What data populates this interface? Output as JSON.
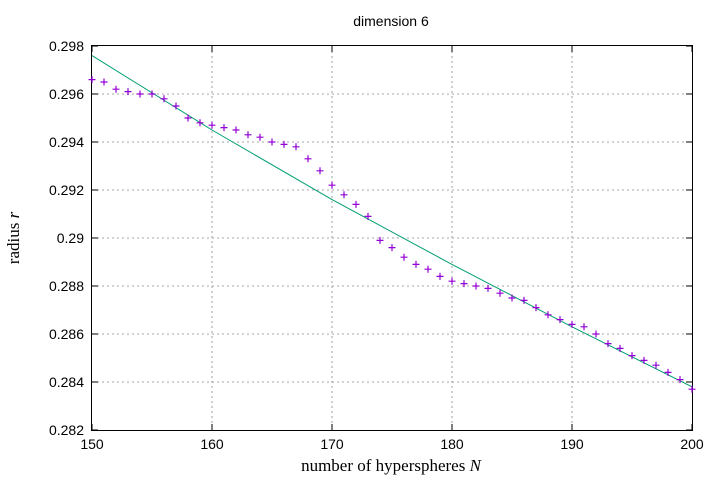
{
  "chart_data": {
    "type": "scatter",
    "title": "dimension 6",
    "xlabel": "number of hyperspheres",
    "xlabel_var": "N",
    "ylabel": "radius",
    "ylabel_var": "r",
    "xlim": [
      150,
      200
    ],
    "ylim": [
      0.282,
      0.298
    ],
    "x_ticks": [
      150,
      160,
      170,
      180,
      190,
      200
    ],
    "x_tick_labels": [
      "150",
      "160",
      "170",
      "180",
      "190",
      "200"
    ],
    "y_ticks": [
      0.282,
      0.284,
      0.286,
      0.288,
      0.29,
      0.292,
      0.294,
      0.296,
      0.298
    ],
    "y_tick_labels": [
      "0.282",
      "0.284",
      "0.286",
      "0.288",
      "0.29",
      "0.292",
      "0.294",
      "0.296",
      "0.298"
    ],
    "grid": true,
    "colors": {
      "points": "#9400d3",
      "fit": "#009e73"
    },
    "points": {
      "marker": "plus",
      "x": [
        150,
        151,
        152,
        153,
        154,
        155,
        156,
        157,
        158,
        159,
        160,
        161,
        162,
        163,
        164,
        165,
        166,
        167,
        168,
        169,
        170,
        171,
        172,
        173,
        174,
        175,
        176,
        177,
        178,
        179,
        180,
        181,
        182,
        183,
        184,
        185,
        186,
        187,
        188,
        189,
        190,
        191,
        192,
        193,
        194,
        195,
        196,
        197,
        198,
        199,
        200
      ],
      "y": [
        0.2966,
        0.2965,
        0.2962,
        0.2961,
        0.296,
        0.296,
        0.2958,
        0.2955,
        0.295,
        0.2948,
        0.2947,
        0.2946,
        0.2945,
        0.2943,
        0.2942,
        0.294,
        0.2939,
        0.2938,
        0.2933,
        0.2928,
        0.2922,
        0.2918,
        0.2914,
        0.2909,
        0.2899,
        0.2896,
        0.2892,
        0.2889,
        0.2887,
        0.2884,
        0.2882,
        0.2881,
        0.288,
        0.2879,
        0.2877,
        0.2875,
        0.2874,
        0.2871,
        0.2868,
        0.2866,
        0.2864,
        0.2863,
        0.286,
        0.2856,
        0.2854,
        0.2851,
        0.2849,
        0.2847,
        0.2844,
        0.2841,
        0.2837
      ]
    },
    "fit": {
      "x": [
        150,
        160,
        170,
        180,
        190,
        200
      ],
      "y": [
        0.2976,
        0.2945,
        0.2916,
        0.2889,
        0.2863,
        0.2838
      ]
    }
  }
}
